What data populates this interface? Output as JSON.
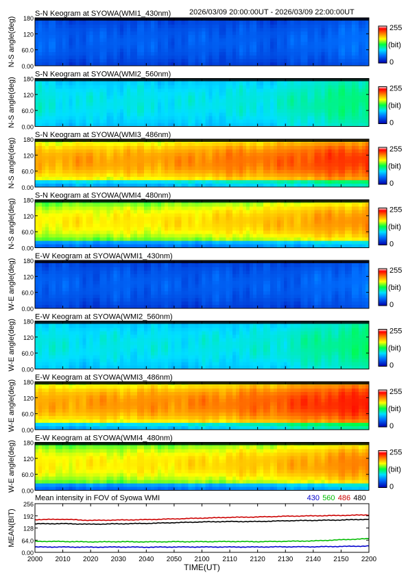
{
  "header": {
    "time_range": "2026/03/09 20:00:00UT - 2026/03/09 22:00:00UT"
  },
  "colors": {
    "series_430": "#0000cc",
    "series_560": "#00bb00",
    "series_486": "#cc0000",
    "series_480": "#000000"
  },
  "chart_data": [
    {
      "type": "heatmap",
      "title": "S-N Keogram at SYOWA(WMI1_430nm)",
      "ylabel": "N-S angle(deg)",
      "yticks": [
        "0.00",
        "60.0",
        "120",
        "180"
      ],
      "ylim": [
        0,
        180
      ],
      "colorbar": {
        "max_label": "255",
        "unit": "(bit)",
        "min_label": "0"
      },
      "level": [
        0.18,
        0.16,
        0.17,
        0.16,
        0.17,
        0.16,
        0.18,
        0.2
      ],
      "edge_bright": false
    },
    {
      "type": "heatmap",
      "title": "S-N Keogram at SYOWA(WMI2_560nm)",
      "ylabel": "N-S angle(deg)",
      "yticks": [
        "0.00",
        "60.0",
        "120",
        "180"
      ],
      "ylim": [
        0,
        180
      ],
      "colorbar": {
        "max_label": "255",
        "unit": "(bit)",
        "min_label": "0"
      },
      "level": [
        0.38,
        0.36,
        0.37,
        0.36,
        0.37,
        0.38,
        0.43,
        0.46
      ],
      "edge_bright": false
    },
    {
      "type": "heatmap",
      "title": "S-N Keogram at SYOWA(WMI3_486nm)",
      "ylabel": "N-S angle(deg)",
      "yticks": [
        "0.00",
        "60.0",
        "120",
        "180"
      ],
      "ylim": [
        0,
        180
      ],
      "colorbar": {
        "max_label": "255",
        "unit": "(bit)",
        "min_label": "0"
      },
      "level": [
        0.74,
        0.76,
        0.75,
        0.77,
        0.8,
        0.81,
        0.86,
        0.88
      ],
      "edge_bright": true
    },
    {
      "type": "heatmap",
      "title": "S-N Keogram at SYOWA(WMI4_480nm)",
      "ylabel": "N-S angle(deg)",
      "yticks": [
        "0.00",
        "60.0",
        "120",
        "180"
      ],
      "ylim": [
        0,
        180
      ],
      "colorbar": {
        "max_label": "255",
        "unit": "(bit)",
        "min_label": "0"
      },
      "level": [
        0.66,
        0.67,
        0.67,
        0.68,
        0.7,
        0.72,
        0.76,
        0.78
      ],
      "edge_bright": true
    },
    {
      "type": "heatmap",
      "title": "E-W Keogram at SYOWA(WMI1_430nm)",
      "ylabel": "W-E angle(deg)",
      "yticks": [
        "0.00",
        "60.0",
        "120",
        "180"
      ],
      "ylim": [
        0,
        180
      ],
      "colorbar": {
        "max_label": "255",
        "unit": "(bit)",
        "min_label": "0"
      },
      "level": [
        0.18,
        0.16,
        0.17,
        0.16,
        0.17,
        0.16,
        0.18,
        0.2
      ],
      "edge_bright": false
    },
    {
      "type": "heatmap",
      "title": "E-W Keogram at SYOWA(WMI2_560nm)",
      "ylabel": "W-E angle(deg)",
      "yticks": [
        "0.00",
        "60.0",
        "120",
        "180"
      ],
      "ylim": [
        0,
        180
      ],
      "colorbar": {
        "max_label": "255",
        "unit": "(bit)",
        "min_label": "0"
      },
      "level": [
        0.38,
        0.36,
        0.37,
        0.36,
        0.37,
        0.38,
        0.43,
        0.46
      ],
      "edge_bright": false
    },
    {
      "type": "heatmap",
      "title": "E-W Keogram at SYOWA(WMI3_486nm)",
      "ylabel": "W-E angle(deg)",
      "yticks": [
        "0.00",
        "60.0",
        "120",
        "180"
      ],
      "ylim": [
        0,
        180
      ],
      "colorbar": {
        "max_label": "255",
        "unit": "(bit)",
        "min_label": "0"
      },
      "level": [
        0.74,
        0.76,
        0.77,
        0.78,
        0.8,
        0.83,
        0.88,
        0.9
      ],
      "edge_bright": true
    },
    {
      "type": "heatmap",
      "title": "E-W Keogram at SYOWA(WMI4_480nm)",
      "ylabel": "W-E angle(deg)",
      "yticks": [
        "0.00",
        "60.0",
        "120",
        "180"
      ],
      "ylim": [
        0,
        180
      ],
      "colorbar": {
        "max_label": "255",
        "unit": "(bit)",
        "min_label": "0"
      },
      "level": [
        0.66,
        0.66,
        0.67,
        0.68,
        0.7,
        0.72,
        0.76,
        0.8
      ],
      "edge_bright": true
    },
    {
      "type": "line",
      "title": "Mean intensity in FOV of Syowa WMI",
      "ylabel": "MEAN(BIT)",
      "xlabel": "TIME(UT)",
      "yticks": [
        "0.00",
        "64.0",
        "128",
        "192",
        "256"
      ],
      "ylim": [
        0,
        256
      ],
      "xticks": [
        "2000",
        "2010",
        "2020",
        "2030",
        "2040",
        "2050",
        "2100",
        "2110",
        "2120",
        "2130",
        "2140",
        "2150",
        "2200"
      ],
      "x": [
        0,
        10,
        20,
        30,
        40,
        50,
        60,
        70,
        80,
        90,
        100,
        110,
        120
      ],
      "series": [
        {
          "name": "430",
          "color": "#0000cc",
          "values": [
            28,
            28,
            27,
            28,
            27,
            28,
            28,
            28,
            28,
            29,
            29,
            31,
            33
          ]
        },
        {
          "name": "560",
          "color": "#00bb00",
          "values": [
            58,
            57,
            55,
            56,
            55,
            56,
            56,
            57,
            56,
            58,
            60,
            66,
            72
          ]
        },
        {
          "name": "486",
          "color": "#cc0000",
          "values": [
            172,
            174,
            168,
            170,
            172,
            176,
            180,
            184,
            186,
            190,
            192,
            194,
            197
          ]
        },
        {
          "name": "480",
          "color": "#000000",
          "values": [
            150,
            151,
            148,
            150,
            152,
            156,
            160,
            162,
            162,
            166,
            168,
            170,
            174
          ]
        }
      ]
    }
  ]
}
